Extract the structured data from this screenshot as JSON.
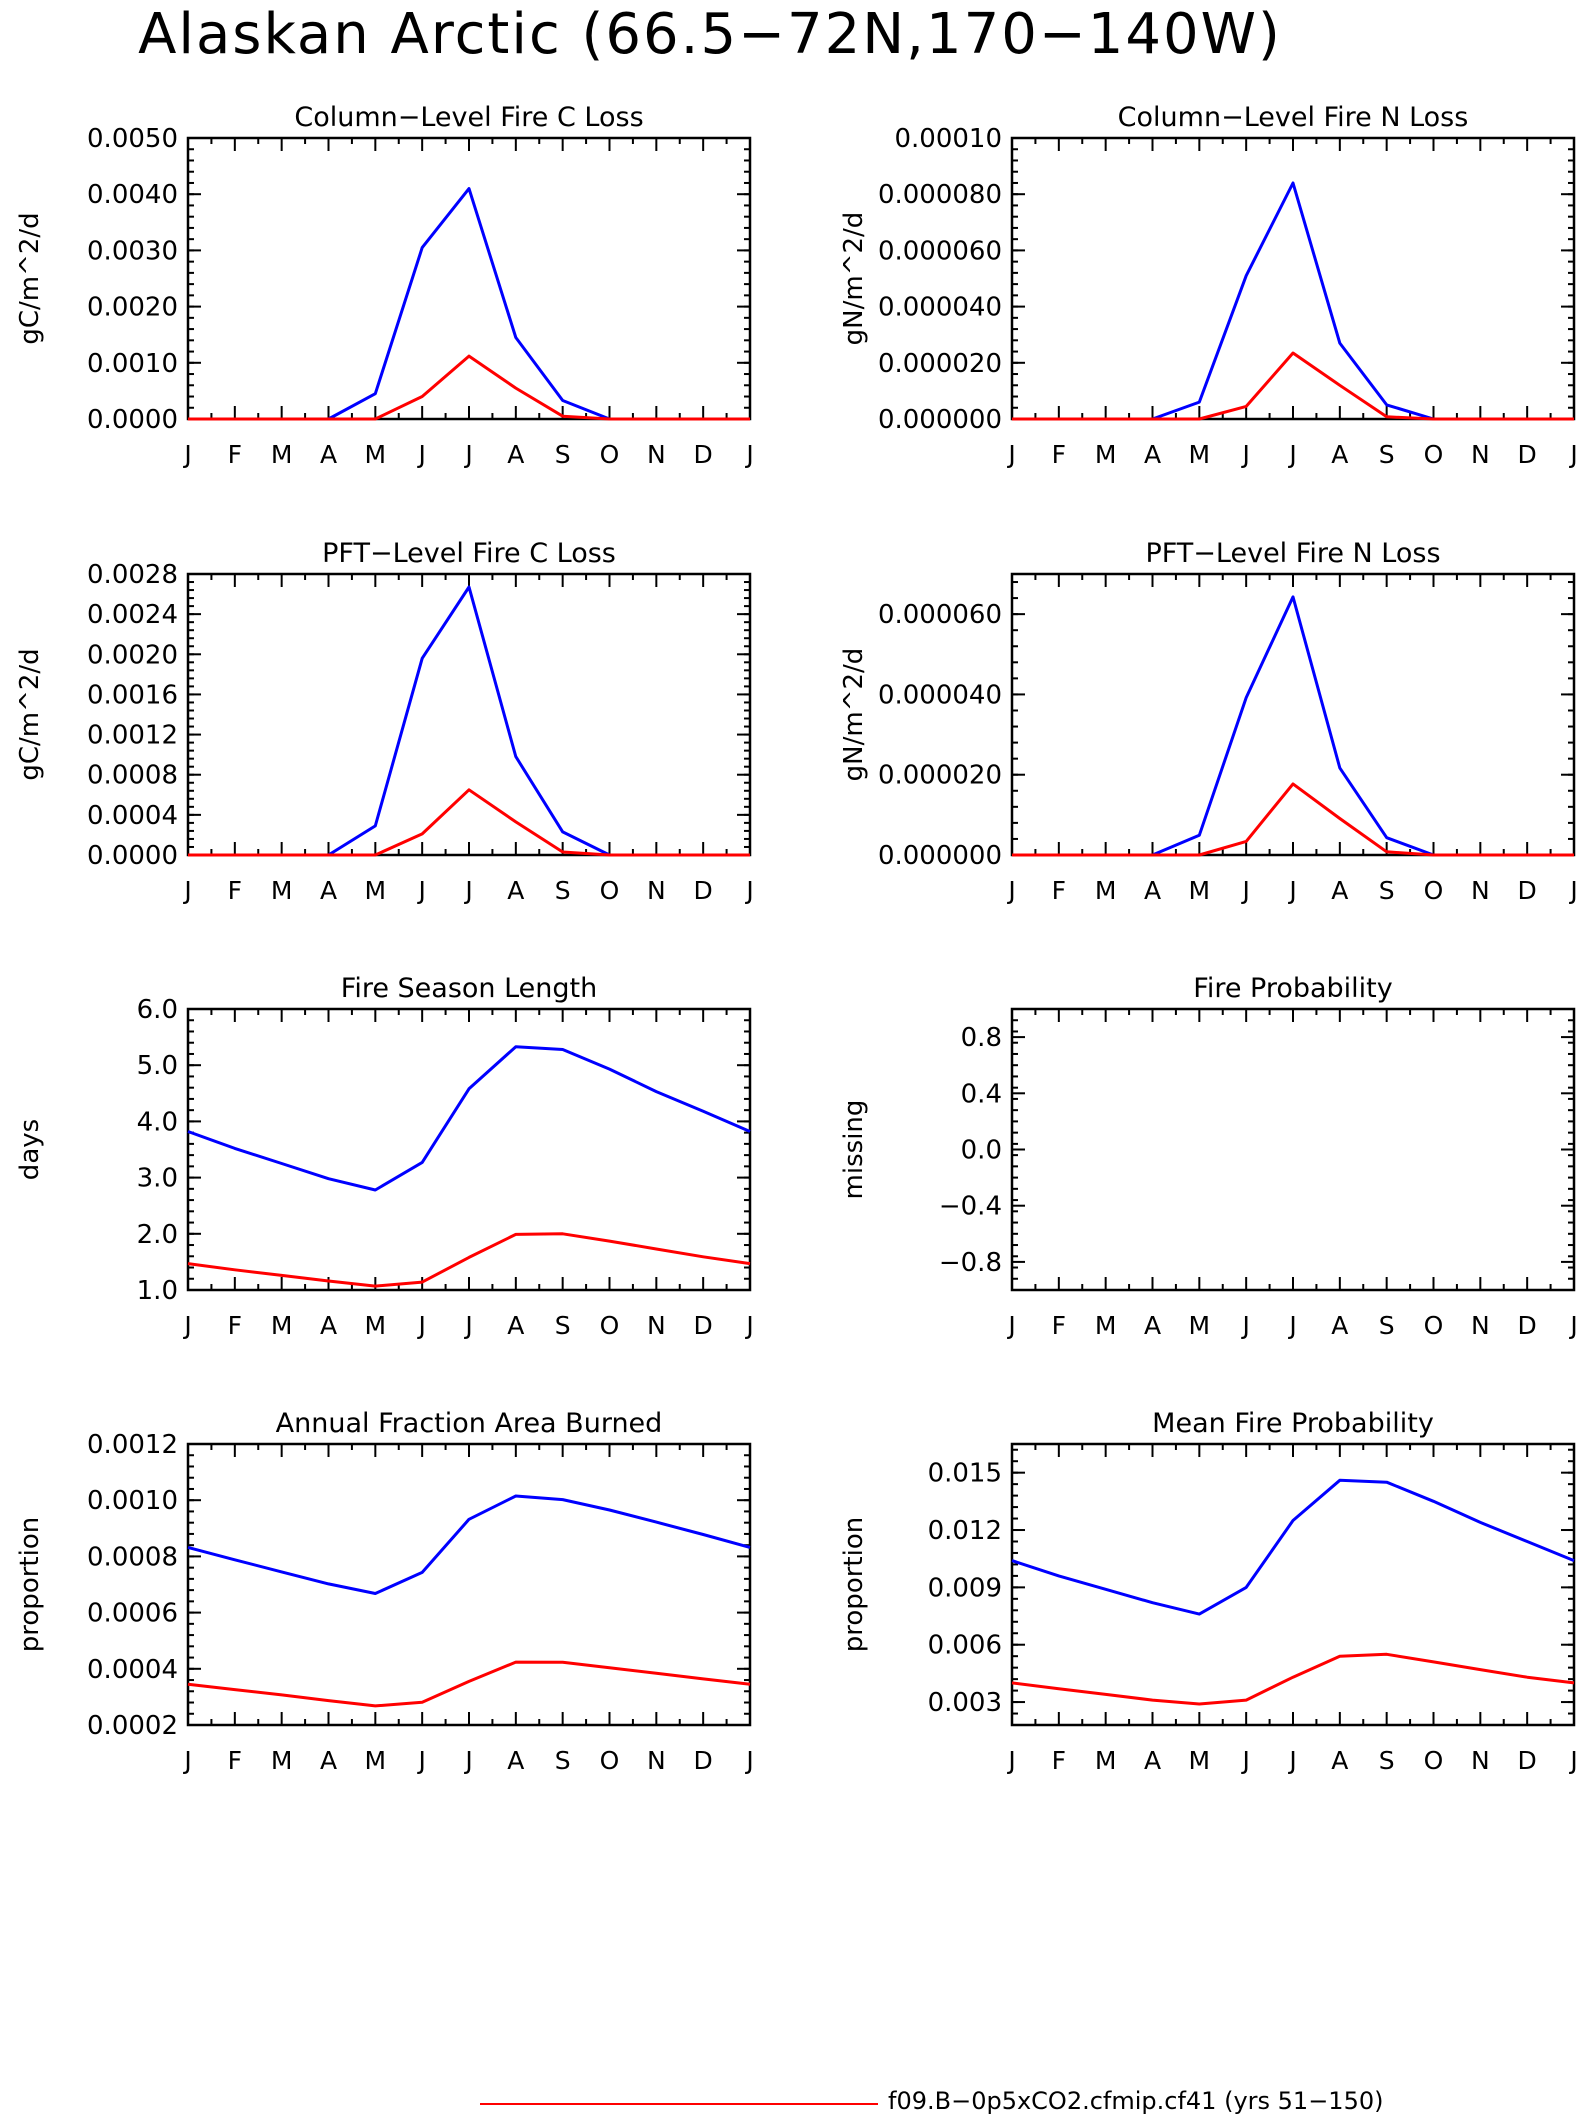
{
  "title": "Alaskan Arctic (66.5−72N,170−140W)",
  "colors": {
    "series1": "#0000ff",
    "series2": "#ff0000"
  },
  "legend": {
    "entries": [
      "f09.B−0p5xCO2.cfmip.cf41 (yrs 51−150)"
    ]
  },
  "chart_data": [
    {
      "type": "line",
      "title": "Column−Level Fire C Loss",
      "ylabel": "gC/m^2/d",
      "x": [
        "J",
        "F",
        "M",
        "A",
        "M",
        "J",
        "J",
        "A",
        "S",
        "O",
        "N",
        "D",
        "J"
      ],
      "ylim": [
        0,
        0.005
      ],
      "yticks": [
        "0.0000",
        "0.0010",
        "0.0020",
        "0.0030",
        "0.0040",
        "0.0050"
      ],
      "series": [
        {
          "values": [
            0,
            0,
            0,
            0,
            0.00045,
            0.00305,
            0.0041,
            0.00145,
            0.00033,
            0,
            0,
            0,
            0
          ]
        },
        {
          "values": [
            0,
            0,
            0,
            0,
            0,
            0.0004,
            0.00112,
            0.00055,
            5e-05,
            0,
            0,
            0,
            0
          ]
        }
      ]
    },
    {
      "type": "line",
      "title": "Column−Level Fire N Loss",
      "ylabel": "gN/m^2/d",
      "x": [
        "J",
        "F",
        "M",
        "A",
        "M",
        "J",
        "J",
        "A",
        "S",
        "O",
        "N",
        "D",
        "J"
      ],
      "ylim": [
        0,
        0.0001
      ],
      "yticks": [
        "0.000000",
        "0.000020",
        "0.000040",
        "0.000060",
        "0.000080",
        "0.00010"
      ],
      "series": [
        {
          "values": [
            0,
            0,
            0,
            0,
            6e-06,
            5.1e-05,
            8.4e-05,
            2.7e-05,
            5e-06,
            0,
            0,
            0,
            0
          ]
        },
        {
          "values": [
            0,
            0,
            0,
            0,
            0,
            4.5e-06,
            2.35e-05,
            1.2e-05,
            8e-07,
            0,
            0,
            0,
            0
          ]
        }
      ]
    },
    {
      "type": "line",
      "title": "PFT−Level Fire C Loss",
      "ylabel": "gC/m^2/d",
      "x": [
        "J",
        "F",
        "M",
        "A",
        "M",
        "J",
        "J",
        "A",
        "S",
        "O",
        "N",
        "D",
        "J"
      ],
      "ylim": [
        0,
        0.0028
      ],
      "yticks": [
        "0.0000",
        "0.0004",
        "0.0008",
        "0.0012",
        "0.0016",
        "0.0020",
        "0.0024",
        "0.0028"
      ],
      "series": [
        {
          "values": [
            0,
            0,
            0,
            0,
            0.00029,
            0.00196,
            0.00267,
            0.00098,
            0.00023,
            0,
            0,
            0,
            0
          ]
        },
        {
          "values": [
            0,
            0,
            0,
            0,
            0,
            0.00021,
            0.00065,
            0.00033,
            3e-05,
            0,
            0,
            0,
            0
          ]
        }
      ]
    },
    {
      "type": "line",
      "title": "PFT−Level Fire N Loss",
      "ylabel": "gN/m^2/d",
      "x": [
        "J",
        "F",
        "M",
        "A",
        "M",
        "J",
        "J",
        "A",
        "S",
        "O",
        "N",
        "D",
        "J"
      ],
      "ylim": [
        0,
        7e-05
      ],
      "yticks": [
        "0.000000",
        "0.000020",
        "0.000040",
        "0.000060"
      ],
      "series": [
        {
          "values": [
            0,
            0,
            0,
            0,
            4.9e-06,
            3.92e-05,
            6.43e-05,
            2.17e-05,
            4.3e-06,
            0,
            0,
            0,
            0
          ]
        },
        {
          "values": [
            0,
            0,
            0,
            0,
            0,
            3.4e-06,
            1.77e-05,
            9.1e-06,
            8e-07,
            0,
            0,
            0,
            0
          ]
        }
      ]
    },
    {
      "type": "line",
      "title": "Fire Season Length",
      "ylabel": "days",
      "x": [
        "J",
        "F",
        "M",
        "A",
        "M",
        "J",
        "J",
        "A",
        "S",
        "O",
        "N",
        "D",
        "J"
      ],
      "ylim": [
        1,
        6
      ],
      "yticks": [
        "1.0",
        "2.0",
        "3.0",
        "4.0",
        "5.0",
        "6.0"
      ],
      "series": [
        {
          "values": [
            3.82,
            3.52,
            3.25,
            2.98,
            2.78,
            3.27,
            4.58,
            5.33,
            5.28,
            4.93,
            4.53,
            4.18,
            3.82
          ]
        },
        {
          "values": [
            1.47,
            1.36,
            1.26,
            1.16,
            1.07,
            1.14,
            1.58,
            1.99,
            2.0,
            1.87,
            1.73,
            1.59,
            1.47
          ]
        }
      ]
    },
    {
      "type": "line",
      "title": "Fire Probability",
      "ylabel": "missing",
      "x": [
        "J",
        "F",
        "M",
        "A",
        "M",
        "J",
        "J",
        "A",
        "S",
        "O",
        "N",
        "D",
        "J"
      ],
      "ylim": [
        -1,
        1
      ],
      "yticks": [
        "−0.8",
        "−0.4",
        "0.0",
        "0.4",
        "0.8"
      ],
      "series": []
    },
    {
      "type": "line",
      "title": "Annual Fraction Area Burned",
      "ylabel": "proportion",
      "x": [
        "J",
        "F",
        "M",
        "A",
        "M",
        "J",
        "J",
        "A",
        "S",
        "O",
        "N",
        "D",
        "J"
      ],
      "ylim": [
        0.0002,
        0.0012
      ],
      "yticks": [
        "0.0002",
        "0.0004",
        "0.0006",
        "0.0008",
        "0.0010",
        "0.0012"
      ],
      "series": [
        {
          "values": [
            0.000832,
            0.000788,
            0.000745,
            0.000702,
            0.000668,
            0.000743,
            0.000932,
            0.001015,
            0.001002,
            0.000965,
            0.000922,
            0.000878,
            0.000832
          ]
        },
        {
          "values": [
            0.000345,
            0.000326,
            0.000307,
            0.000287,
            0.000268,
            0.000281,
            0.000355,
            0.000424,
            0.000423,
            0.000404,
            0.000384,
            0.000364,
            0.000345
          ]
        }
      ]
    },
    {
      "type": "line",
      "title": "Mean Fire Probability",
      "ylabel": "proportion",
      "x": [
        "J",
        "F",
        "M",
        "A",
        "M",
        "J",
        "J",
        "A",
        "S",
        "O",
        "N",
        "D",
        "J"
      ],
      "ylim": [
        0.0018,
        0.0165
      ],
      "yticks": [
        "0.003",
        "0.006",
        "0.009",
        "0.012",
        "0.015"
      ],
      "series": [
        {
          "values": [
            0.0104,
            0.0096,
            0.0089,
            0.0082,
            0.0076,
            0.009,
            0.0125,
            0.0146,
            0.0145,
            0.0135,
            0.0124,
            0.0114,
            0.0104
          ]
        },
        {
          "values": [
            0.004,
            0.0037,
            0.0034,
            0.0031,
            0.0029,
            0.0031,
            0.0043,
            0.0054,
            0.0055,
            0.0051,
            0.0047,
            0.0043,
            0.004
          ]
        }
      ]
    }
  ]
}
